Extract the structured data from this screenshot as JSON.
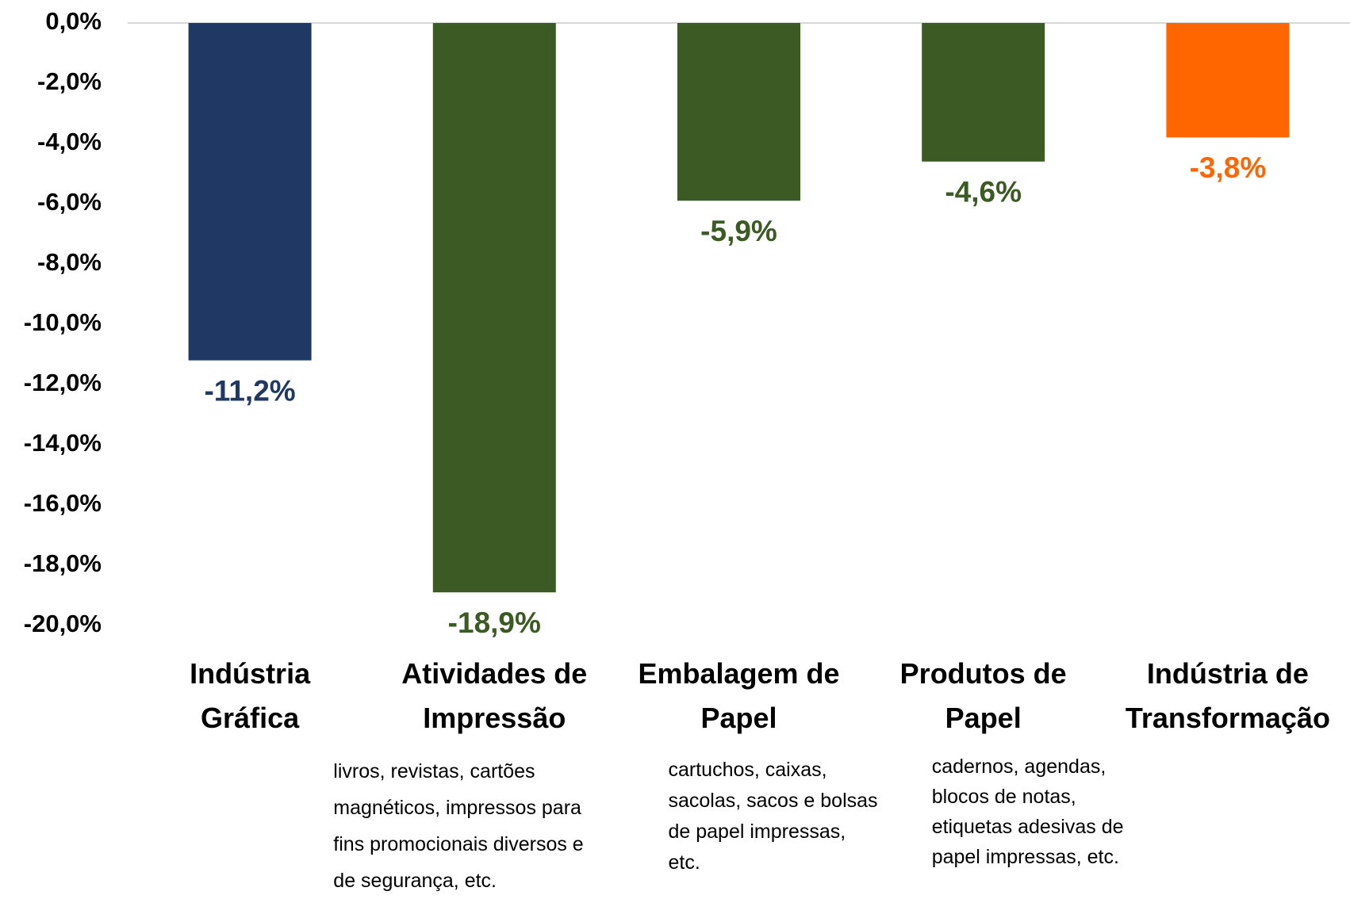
{
  "chart_data": {
    "type": "bar",
    "categories": [
      "Indústria\nGráfica",
      "Atividades de\nImpressão",
      "Embalagem de\nPapel",
      "Produtos de\nPapel",
      "Indústria de\nTransformação"
    ],
    "values": [
      -11.2,
      -18.9,
      -5.9,
      -4.6,
      -3.8
    ],
    "value_labels": [
      "-11,2%",
      "-18,9%",
      "-5,9%",
      "-4,6%",
      "-3,8%"
    ],
    "colors": [
      "#203864",
      "#3b5a24",
      "#3b5a24",
      "#3b5a24",
      "#ff6600"
    ],
    "annotations": [
      {
        "category": 1,
        "text": "livros, revistas, cartões\nmagnéticos, impressos para\nfins promocionais diversos e\nde segurança, etc."
      },
      {
        "category": 2,
        "text": "cartuchos, caixas,\nsacolas, sacos e bolsas\nde papel impressas,\netc."
      },
      {
        "category": 3,
        "text": "cadernos, agendas,\nblocos de notas,\netiquetas adesivas de\npapel impressas, etc."
      }
    ],
    "ylim": [
      -20,
      0
    ],
    "yticks": [
      {
        "value": 0,
        "label": "0,0%"
      },
      {
        "value": -2,
        "label": "-2,0%"
      },
      {
        "value": -4,
        "label": "-4,0%"
      },
      {
        "value": -6,
        "label": "-6,0%"
      },
      {
        "value": -8,
        "label": "-8,0%"
      },
      {
        "value": -10,
        "label": "-10,0%"
      },
      {
        "value": -12,
        "label": "-12,0%"
      },
      {
        "value": -14,
        "label": "-14,0%"
      },
      {
        "value": -16,
        "label": "-16,0%"
      },
      {
        "value": -18,
        "label": "-18,0%"
      },
      {
        "value": -20,
        "label": "-20,0%"
      }
    ],
    "grid": false
  }
}
